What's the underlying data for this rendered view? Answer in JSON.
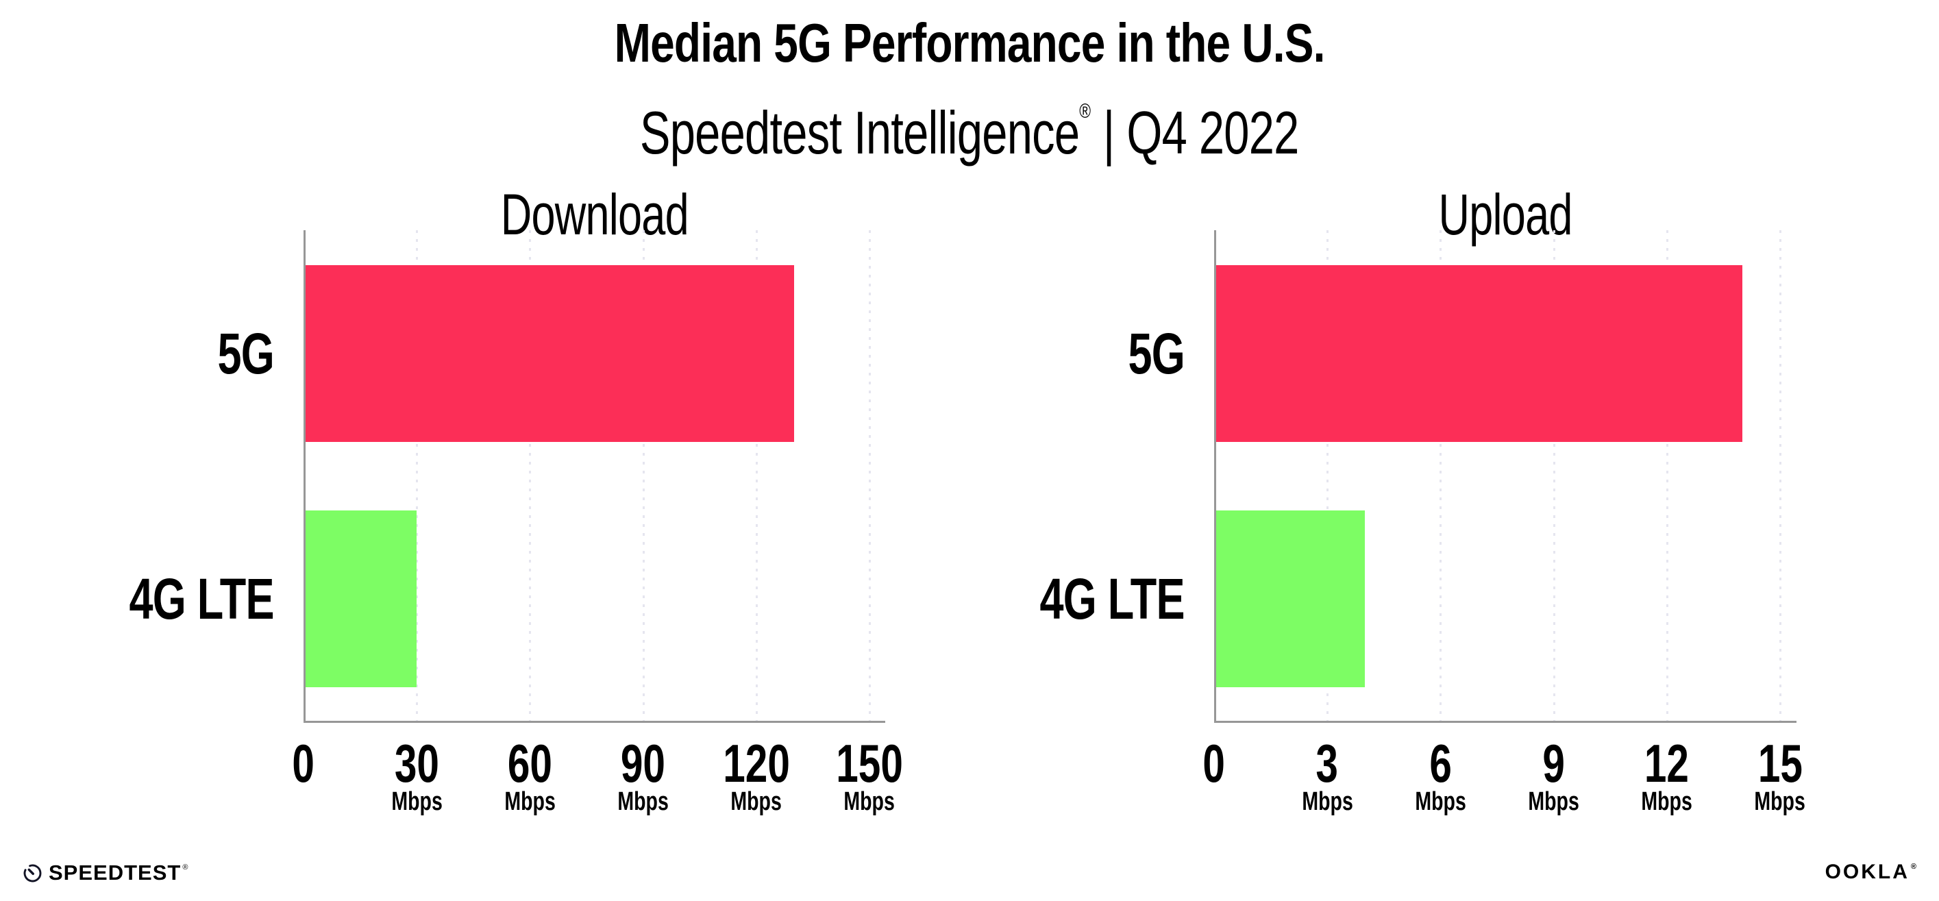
{
  "header": {
    "title": "Median 5G Performance in the U.S.",
    "subtitle_brand": "Speedtest Intelligence",
    "subtitle_mark": "®",
    "subtitle_rest": " | Q4 2022"
  },
  "chart_data": [
    {
      "type": "bar",
      "orientation": "horizontal",
      "title": "Download",
      "categories": [
        "5G",
        "4G LTE"
      ],
      "values": [
        130,
        30
      ],
      "unit": "Mbps",
      "xlim": [
        0,
        150
      ],
      "xticks": [
        0,
        30,
        60,
        90,
        120,
        150
      ],
      "bar_colors": [
        "#fc2e57",
        "#7dfd64"
      ],
      "grid": "dotted-vertical",
      "legend": "none"
    },
    {
      "type": "bar",
      "orientation": "horizontal",
      "title": "Upload",
      "categories": [
        "5G",
        "4G LTE"
      ],
      "values": [
        14,
        4
      ],
      "unit": "Mbps",
      "xlim": [
        0,
        15
      ],
      "xticks": [
        0,
        3,
        6,
        9,
        12,
        15
      ],
      "bar_colors": [
        "#fc2e57",
        "#7dfd64"
      ],
      "grid": "dotted-vertical",
      "legend": "none"
    }
  ],
  "style": {
    "bar_5g_color": "#fc2e57",
    "bar_4glte_color": "#7dfd64",
    "axis_color": "#979797",
    "gridline_color": "#e5e5ef",
    "text_color": "#000000",
    "logo_color": "#131426",
    "background": "#ffffff"
  },
  "footer": {
    "speedtest_label": "SPEEDTEST",
    "speedtest_mark": "®",
    "ookla_label": "OOKLA",
    "ookla_mark": "®"
  }
}
